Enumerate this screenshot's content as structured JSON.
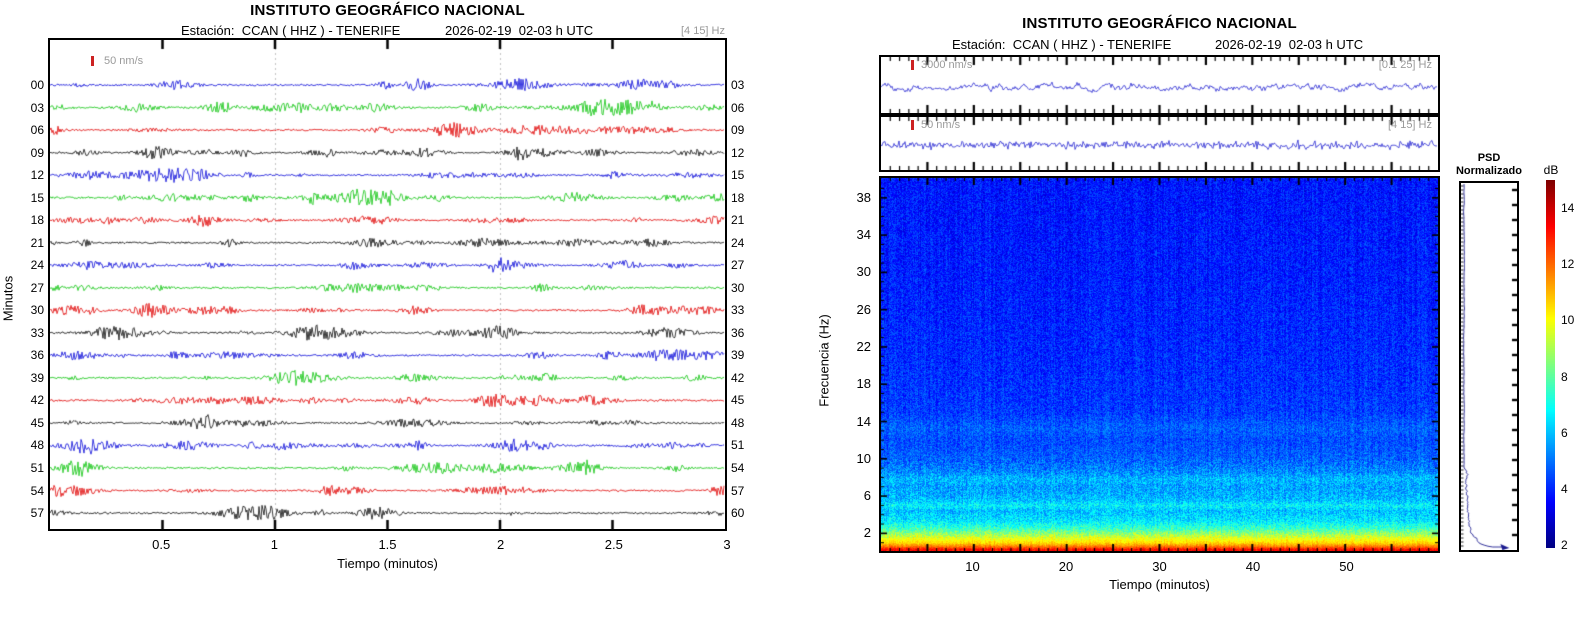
{
  "left_panel": {
    "title": "INSTITUTO GEOGRÁFICO NACIONAL",
    "station_label": "Estación:  CCAN ( HHZ ) - TENERIFE",
    "datetime_label": "2026-02-19  02-03 h UTC",
    "filter_label": "[4 15] Hz",
    "scale_label": "50 nm/s",
    "ylabel": "Minutos",
    "xlabel": "Tiempo (minutos)",
    "x_tick_labels": [
      "0.5",
      "1",
      "1.5",
      "2",
      "2.5",
      "3"
    ],
    "left_minute_labels": [
      "00",
      "03",
      "06",
      "09",
      "12",
      "15",
      "18",
      "21",
      "24",
      "27",
      "30",
      "33",
      "36",
      "39",
      "42",
      "45",
      "48",
      "51",
      "54",
      "57"
    ],
    "right_minute_labels": [
      "03",
      "06",
      "09",
      "12",
      "15",
      "18",
      "21",
      "24",
      "27",
      "30",
      "33",
      "36",
      "39",
      "42",
      "45",
      "48",
      "51",
      "54",
      "57",
      "60"
    ],
    "trace_colors": [
      "#0a0ad8",
      "#0cc40c",
      "#e00000",
      "#0a0a0a"
    ]
  },
  "right_panel": {
    "title": "INSTITUTO GEOGRÁFICO NACIONAL",
    "station_label": "Estación:  CCAN ( HHZ ) - TENERIFE",
    "datetime_label": "2026-02-19  02-03 h UTC",
    "strip1": {
      "scale_label": "3000 nm/s",
      "filter_label": "[0.1 25] Hz"
    },
    "strip2": {
      "scale_label": "50 nm/s",
      "filter_label": "[4 15] Hz"
    },
    "spectrogram": {
      "ylabel": "Frecuencia (Hz)",
      "xlabel": "Tiempo (minutos)",
      "y_tick_labels": [
        "2",
        "6",
        "10",
        "14",
        "18",
        "22",
        "26",
        "30",
        "34",
        "38"
      ],
      "x_tick_labels": [
        "10",
        "20",
        "30",
        "40",
        "50"
      ]
    },
    "psd": {
      "title_line1": "PSD",
      "title_line2": "Normalizado"
    },
    "colorbar": {
      "label": "dB",
      "tick_labels": [
        "14",
        "12",
        "10",
        "8",
        "6",
        "4",
        "2"
      ],
      "range_db": [
        1.9,
        15
      ]
    }
  },
  "chart_data": [
    {
      "type": "line",
      "subtype": "helicorder-seismogram",
      "title": "INSTITUTO GEOGRÁFICO NACIONAL",
      "subtitle": "Estación: CCAN ( HHZ ) - TENERIFE — 2026-02-19 02-03 h UTC",
      "filter_band_hz": "[4 15] Hz",
      "amplitude_scale": "50 nm/s",
      "xlabel": "Tiempo (minutos)",
      "ylabel": "Minutos",
      "xlim": [
        0,
        3
      ],
      "x_ticks": [
        0.5,
        1,
        1.5,
        2,
        2.5,
        3
      ],
      "rows": [
        {
          "start_minute": "00",
          "end_minute": "03",
          "color": "blue"
        },
        {
          "start_minute": "03",
          "end_minute": "06",
          "color": "green"
        },
        {
          "start_minute": "06",
          "end_minute": "09",
          "color": "red"
        },
        {
          "start_minute": "09",
          "end_minute": "12",
          "color": "black"
        },
        {
          "start_minute": "12",
          "end_minute": "15",
          "color": "blue"
        },
        {
          "start_minute": "15",
          "end_minute": "18",
          "color": "green"
        },
        {
          "start_minute": "18",
          "end_minute": "21",
          "color": "red"
        },
        {
          "start_minute": "21",
          "end_minute": "24",
          "color": "black"
        },
        {
          "start_minute": "24",
          "end_minute": "27",
          "color": "blue"
        },
        {
          "start_minute": "27",
          "end_minute": "30",
          "color": "green"
        },
        {
          "start_minute": "30",
          "end_minute": "33",
          "color": "red"
        },
        {
          "start_minute": "33",
          "end_minute": "36",
          "color": "black"
        },
        {
          "start_minute": "36",
          "end_minute": "39",
          "color": "blue"
        },
        {
          "start_minute": "39",
          "end_minute": "42",
          "color": "green"
        },
        {
          "start_minute": "42",
          "end_minute": "45",
          "color": "red"
        },
        {
          "start_minute": "45",
          "end_minute": "48",
          "color": "black"
        },
        {
          "start_minute": "48",
          "end_minute": "51",
          "color": "blue"
        },
        {
          "start_minute": "51",
          "end_minute": "54",
          "color": "red"
        },
        {
          "start_minute": "54",
          "end_minute": "57",
          "color": "red"
        },
        {
          "start_minute": "57",
          "end_minute": "60",
          "color": "black"
        }
      ],
      "description": "20 rows of 3 minutes each; low-amplitude continuous seismic noise with small tremor bursts, no clear event"
    },
    {
      "type": "heatmap",
      "subtype": "spectrogram",
      "title": "INSTITUTO GEOGRÁFICO NACIONAL",
      "subtitle": "Estación: CCAN ( HHZ ) - TENERIFE — 2026-02-19 02-03 h UTC",
      "xlabel": "Tiempo (minutos)",
      "ylabel": "Frecuencia (Hz)",
      "xlim": [
        0,
        60
      ],
      "ylim": [
        0,
        40
      ],
      "x_ticks": [
        10,
        20,
        30,
        40,
        50
      ],
      "y_ticks": [
        2,
        6,
        10,
        14,
        18,
        22,
        26,
        30,
        34,
        38
      ],
      "colorbar": {
        "label": "dB",
        "ticks": [
          2,
          4,
          6,
          8,
          10,
          12,
          14
        ],
        "range": [
          1.9,
          15
        ],
        "colormap": "jet"
      },
      "waveform_strips": [
        {
          "filter_band_hz": "[0.1 25] Hz",
          "amplitude_scale": "3000 nm/s"
        },
        {
          "filter_band_hz": "[4 15] Hz",
          "amplitude_scale": "50 nm/s"
        }
      ],
      "spectral_profile": {
        "freq_hz": [
          0.3,
          0.7,
          1.0,
          1.5,
          2.0,
          2.6,
          3.4,
          4.5,
          5.0,
          5.7,
          7.0,
          7.9,
          8.6,
          10,
          12,
          13.3,
          15,
          20,
          30,
          40
        ],
        "psd_db": [
          13.3,
          11.6,
          10.6,
          9.8,
          8.7,
          7.5,
          6.5,
          6.0,
          6.7,
          5.9,
          5.6,
          5.9,
          5.3,
          4.8,
          4.5,
          4.8,
          4.3,
          4.1,
          3.9,
          3.8
        ]
      },
      "psd_panel": {
        "title": "PSD Normalizado",
        "curve": {
          "freq_hz": [
            0.2,
            0.5,
            1.0,
            1.5,
            2,
            3,
            4,
            5,
            6,
            8,
            10,
            15,
            20,
            30,
            40
          ],
          "normalized": [
            1.0,
            0.75,
            0.4,
            0.3,
            0.22,
            0.15,
            0.12,
            0.1,
            0.08,
            0.05,
            0.03,
            0.02,
            0.02,
            0.015,
            0.01
          ]
        }
      },
      "description": "Stationary background: strong energy (red/orange ~13 dB) below 1 Hz, yellow-green band 1-2.5 Hz, cyan speckled band near 5 Hz, uniform blue (~4 dB) above 10 Hz"
    }
  ]
}
